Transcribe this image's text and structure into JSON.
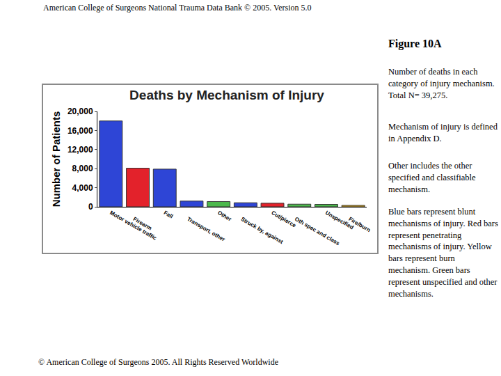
{
  "header": "American College of Surgeons National Trauma Data Bank © 2005. Version 5.0",
  "figure_label": "Figure 10A",
  "caption": [
    "Number of deaths in each category of injury mechanism. Total N= 39,275.",
    "Mechanism of injury is defined in Appendix D.",
    "Other includes the other specified and classifiable mechanism.",
    "Blue bars represent blunt mechanisms of injury. Red bars represent penetrating mechanisms of injury. Yellow bars represent burn mechanism. Green bars represent unspecified and other mechanisms."
  ],
  "footer": "© American College of Surgeons 2005. All Rights Reserved Worldwide",
  "chart_data": {
    "type": "bar",
    "title": "Deaths by Mechanism of Injury",
    "y_label": "Number of Patients",
    "categories": [
      "Motor vehicle traffic",
      "Firearm",
      "Fall",
      "Transport, other",
      "Other",
      "Struck by, against",
      "Cut/pierce",
      "Oth spec and class",
      "Unspecified",
      "Fire/burn"
    ],
    "values": [
      18000,
      8100,
      7900,
      1200,
      1100,
      850,
      750,
      550,
      500,
      300
    ],
    "colors": [
      "#2e45d6",
      "#e3222b",
      "#2e45d6",
      "#2e45d6",
      "#4cb84c",
      "#2e45d6",
      "#e3222b",
      "#4cb84c",
      "#4cb84c",
      "#d8a51c"
    ],
    "ylim": [
      0,
      20000
    ],
    "yticks": [
      0,
      {
        "value": 4000,
        "label": "4,000"
      },
      {
        "value": 8000,
        "label": "8,000"
      },
      {
        "value": 12000,
        "label": "12,000"
      },
      {
        "value": 16000,
        "label": "16,000"
      },
      {
        "value": 20000,
        "label": "20,000"
      }
    ],
    "grid": false
  }
}
